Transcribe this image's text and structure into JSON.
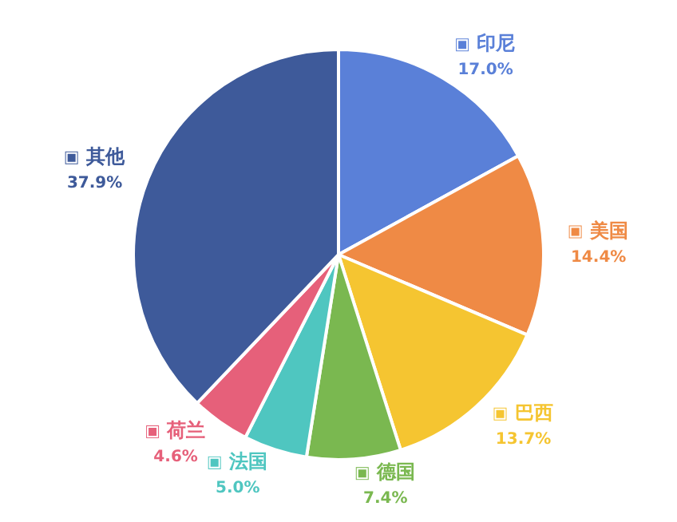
{
  "chart_data": {
    "type": "pie",
    "categories": [
      "印尼",
      "美国",
      "巴西",
      "德国",
      "法国",
      "荷兰",
      "其他"
    ],
    "values": [
      17.0,
      14.4,
      13.7,
      7.4,
      5.0,
      4.6,
      37.9
    ],
    "value_labels": [
      "17.0%",
      "14.4%",
      "13.7%",
      "7.4%",
      "5.0%",
      "4.6%",
      "37.9%"
    ],
    "colors": [
      "#5a80d8",
      "#ef8a45",
      "#f5c531",
      "#7ab850",
      "#4fc6c0",
      "#e6607a",
      "#3e5a9a"
    ],
    "legend": true
  }
}
